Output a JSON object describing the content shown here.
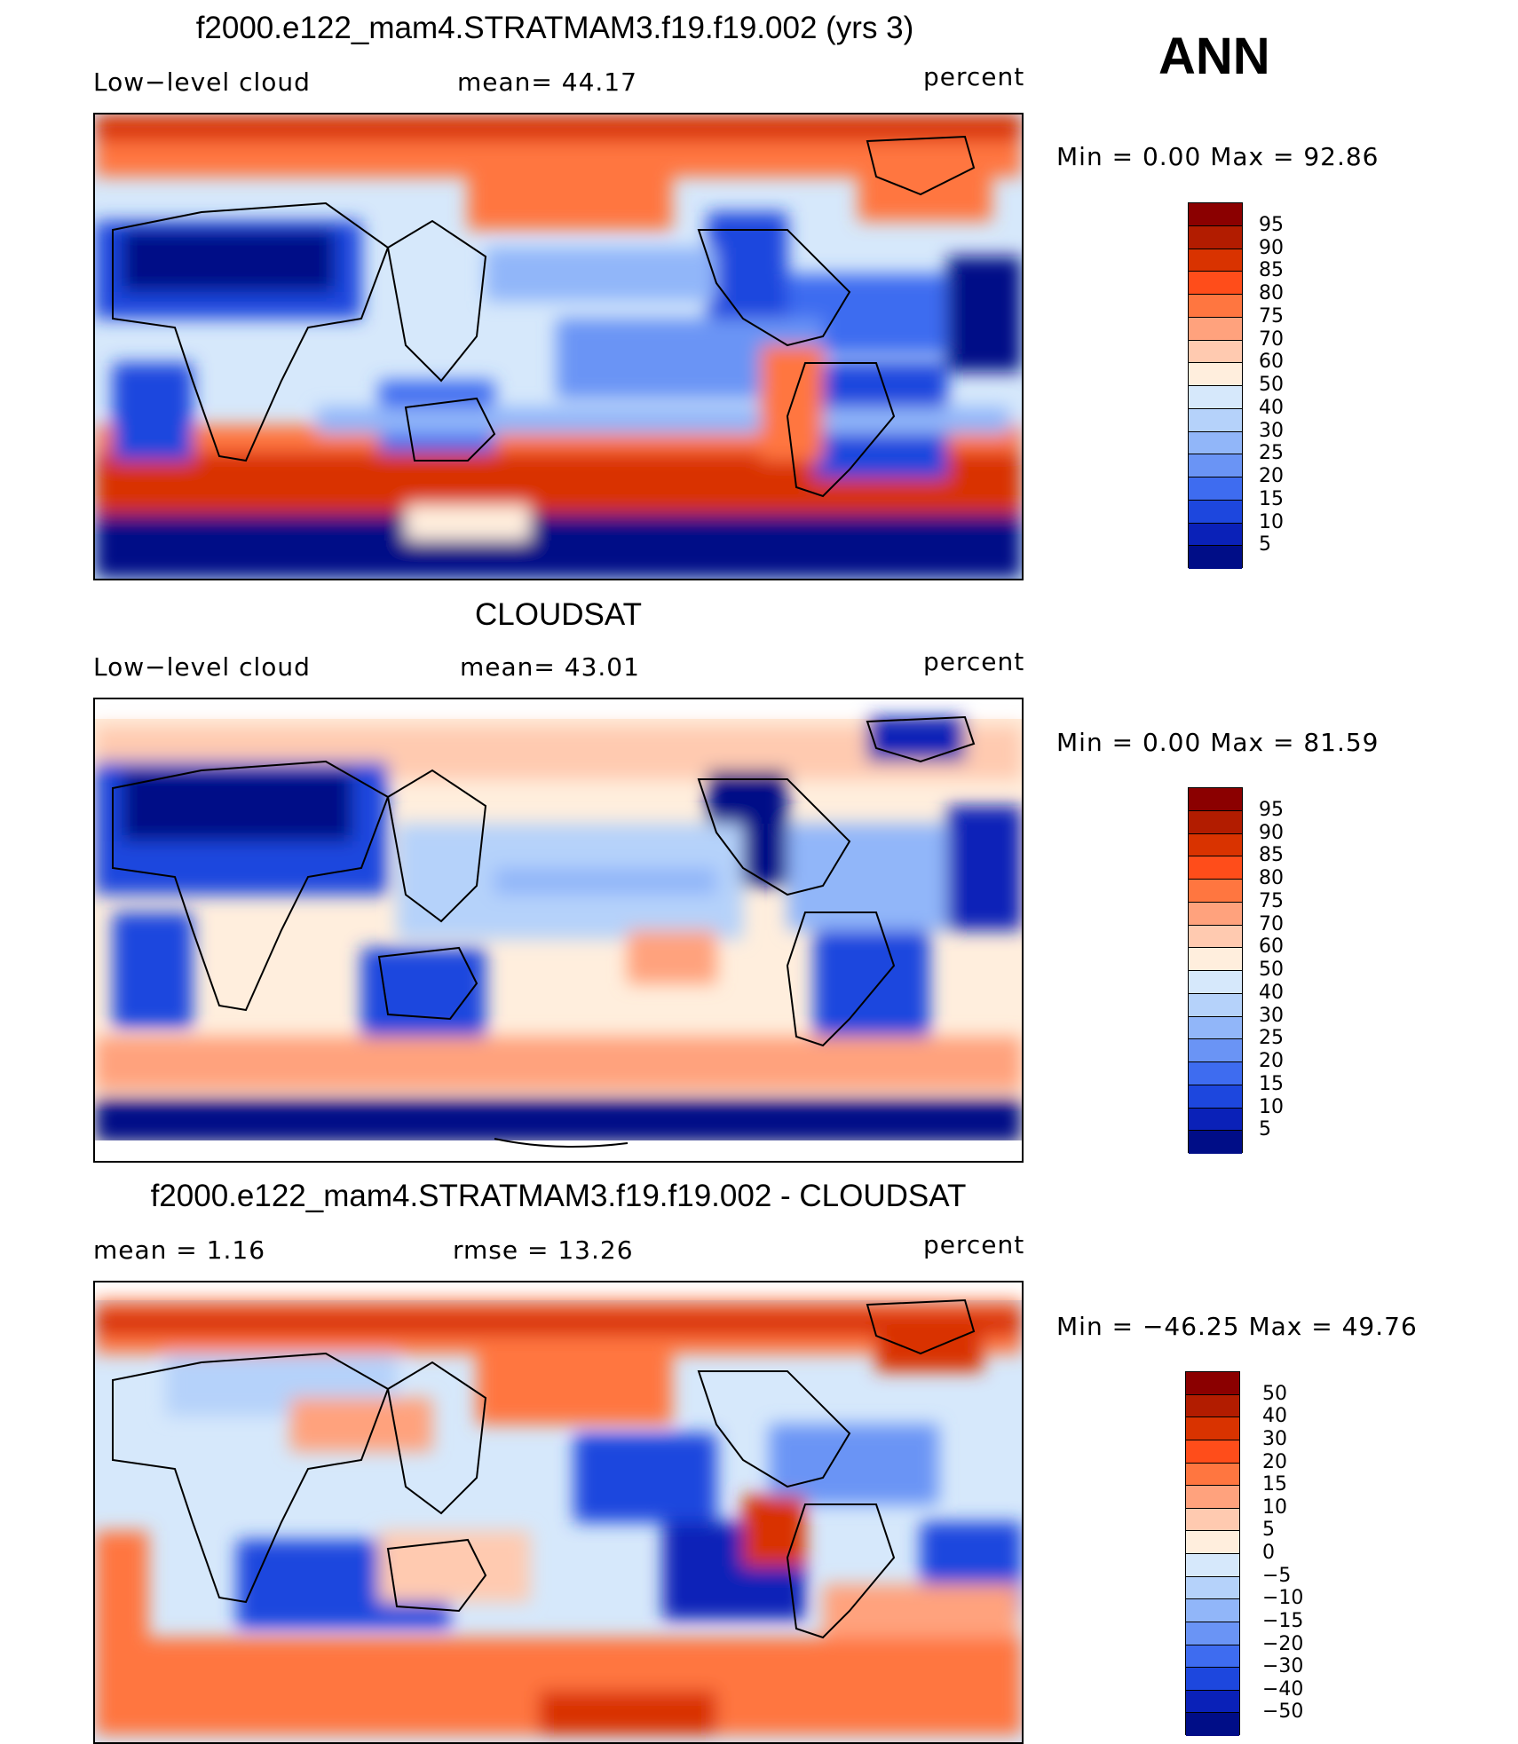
{
  "season": "ANN",
  "panels": [
    {
      "id": "model",
      "title": "f2000.e122_mam4.STRATMAM3.f19.f19.002 (yrs 3)",
      "left_label": "Low−level cloud",
      "center_label": "mean=   44.17",
      "right_label": "percent",
      "min_max": "Min  =     0.00  Max  =    92.86",
      "colorbar_labels": [
        "95",
        "90",
        "85",
        "80",
        "75",
        "70",
        "60",
        "50",
        "40",
        "30",
        "25",
        "20",
        "15",
        "10",
        "5"
      ],
      "colors": [
        "#8b0000",
        "#b21c00",
        "#d93300",
        "#ff4d1a",
        "#ff7640",
        "#ffa27d",
        "#ffcab0",
        "#ffeedd",
        "#d6e8fb",
        "#b5d2fa",
        "#91b6f9",
        "#6a94f5",
        "#3e6cf0",
        "#1d47de",
        "#0a21b8",
        "#000d87"
      ]
    },
    {
      "id": "obs",
      "title": "CLOUDSAT",
      "left_label": "Low−level cloud",
      "center_label": "mean=   43.01",
      "right_label": "percent",
      "min_max": "Min  =     0.00  Max  =    81.59",
      "colorbar_labels": [
        "95",
        "90",
        "85",
        "80",
        "75",
        "70",
        "60",
        "50",
        "40",
        "30",
        "25",
        "20",
        "15",
        "10",
        "5"
      ],
      "colors": [
        "#8b0000",
        "#b21c00",
        "#d93300",
        "#ff4d1a",
        "#ff7640",
        "#ffa27d",
        "#ffcab0",
        "#ffeedd",
        "#d6e8fb",
        "#b5d2fa",
        "#91b6f9",
        "#6a94f5",
        "#3e6cf0",
        "#1d47de",
        "#0a21b8",
        "#000d87"
      ]
    },
    {
      "id": "diff",
      "title": "f2000.e122_mam4.STRATMAM3.f19.f19.002 - CLOUDSAT",
      "left_label": "mean  =     1.16",
      "center_label": "rmse  =    13.26",
      "right_label": "percent",
      "min_max": "Min  = −46.25  Max  =    49.76",
      "colorbar_labels": [
        "50",
        "40",
        "30",
        "20",
        "15",
        "10",
        "5",
        "0",
        "−5",
        "−10",
        "−15",
        "−20",
        "−30",
        "−40",
        "−50"
      ],
      "colors": [
        "#8b0000",
        "#b21c00",
        "#d93300",
        "#ff4d1a",
        "#ff7640",
        "#ffa27d",
        "#ffcab0",
        "#ffeedd",
        "#d6e8fb",
        "#b5d2fa",
        "#91b6f9",
        "#6a94f5",
        "#3e6cf0",
        "#1d47de",
        "#0a21b8",
        "#000d87"
      ]
    }
  ]
}
